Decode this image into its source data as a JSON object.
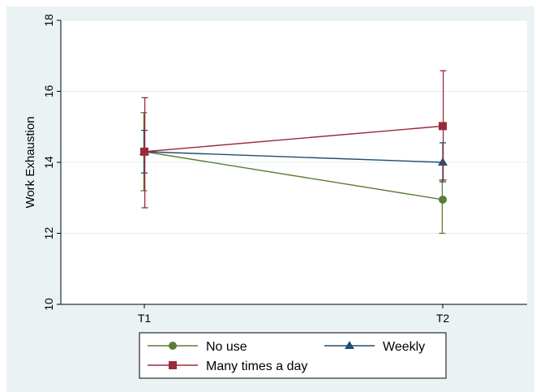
{
  "chart_data": {
    "type": "line",
    "categories": [
      "T1",
      "T2"
    ],
    "ylabel": "Work Exhaustion",
    "xlabel": "",
    "ylim": [
      10,
      18
    ],
    "yticks": [
      10,
      12,
      14,
      16,
      18
    ],
    "grid": true,
    "legend_position": "bottom",
    "series": [
      {
        "name": "No use",
        "color": "#5b7d35",
        "marker": "circle",
        "values": [
          14.3,
          12.95
        ],
        "ci_low": [
          13.2,
          12.0
        ],
        "ci_high": [
          15.4,
          13.5
        ]
      },
      {
        "name": "Weekly",
        "color": "#1f4e73",
        "marker": "triangle",
        "values": [
          14.3,
          14.0
        ],
        "ci_low": [
          13.7,
          13.45
        ],
        "ci_high": [
          14.9,
          14.55
        ]
      },
      {
        "name": "Many times a day",
        "color": "#9b2a3a",
        "marker": "square",
        "values": [
          14.3,
          15.02
        ],
        "ci_low": [
          12.72,
          13.5
        ],
        "ci_high": [
          15.82,
          16.58
        ]
      }
    ]
  }
}
